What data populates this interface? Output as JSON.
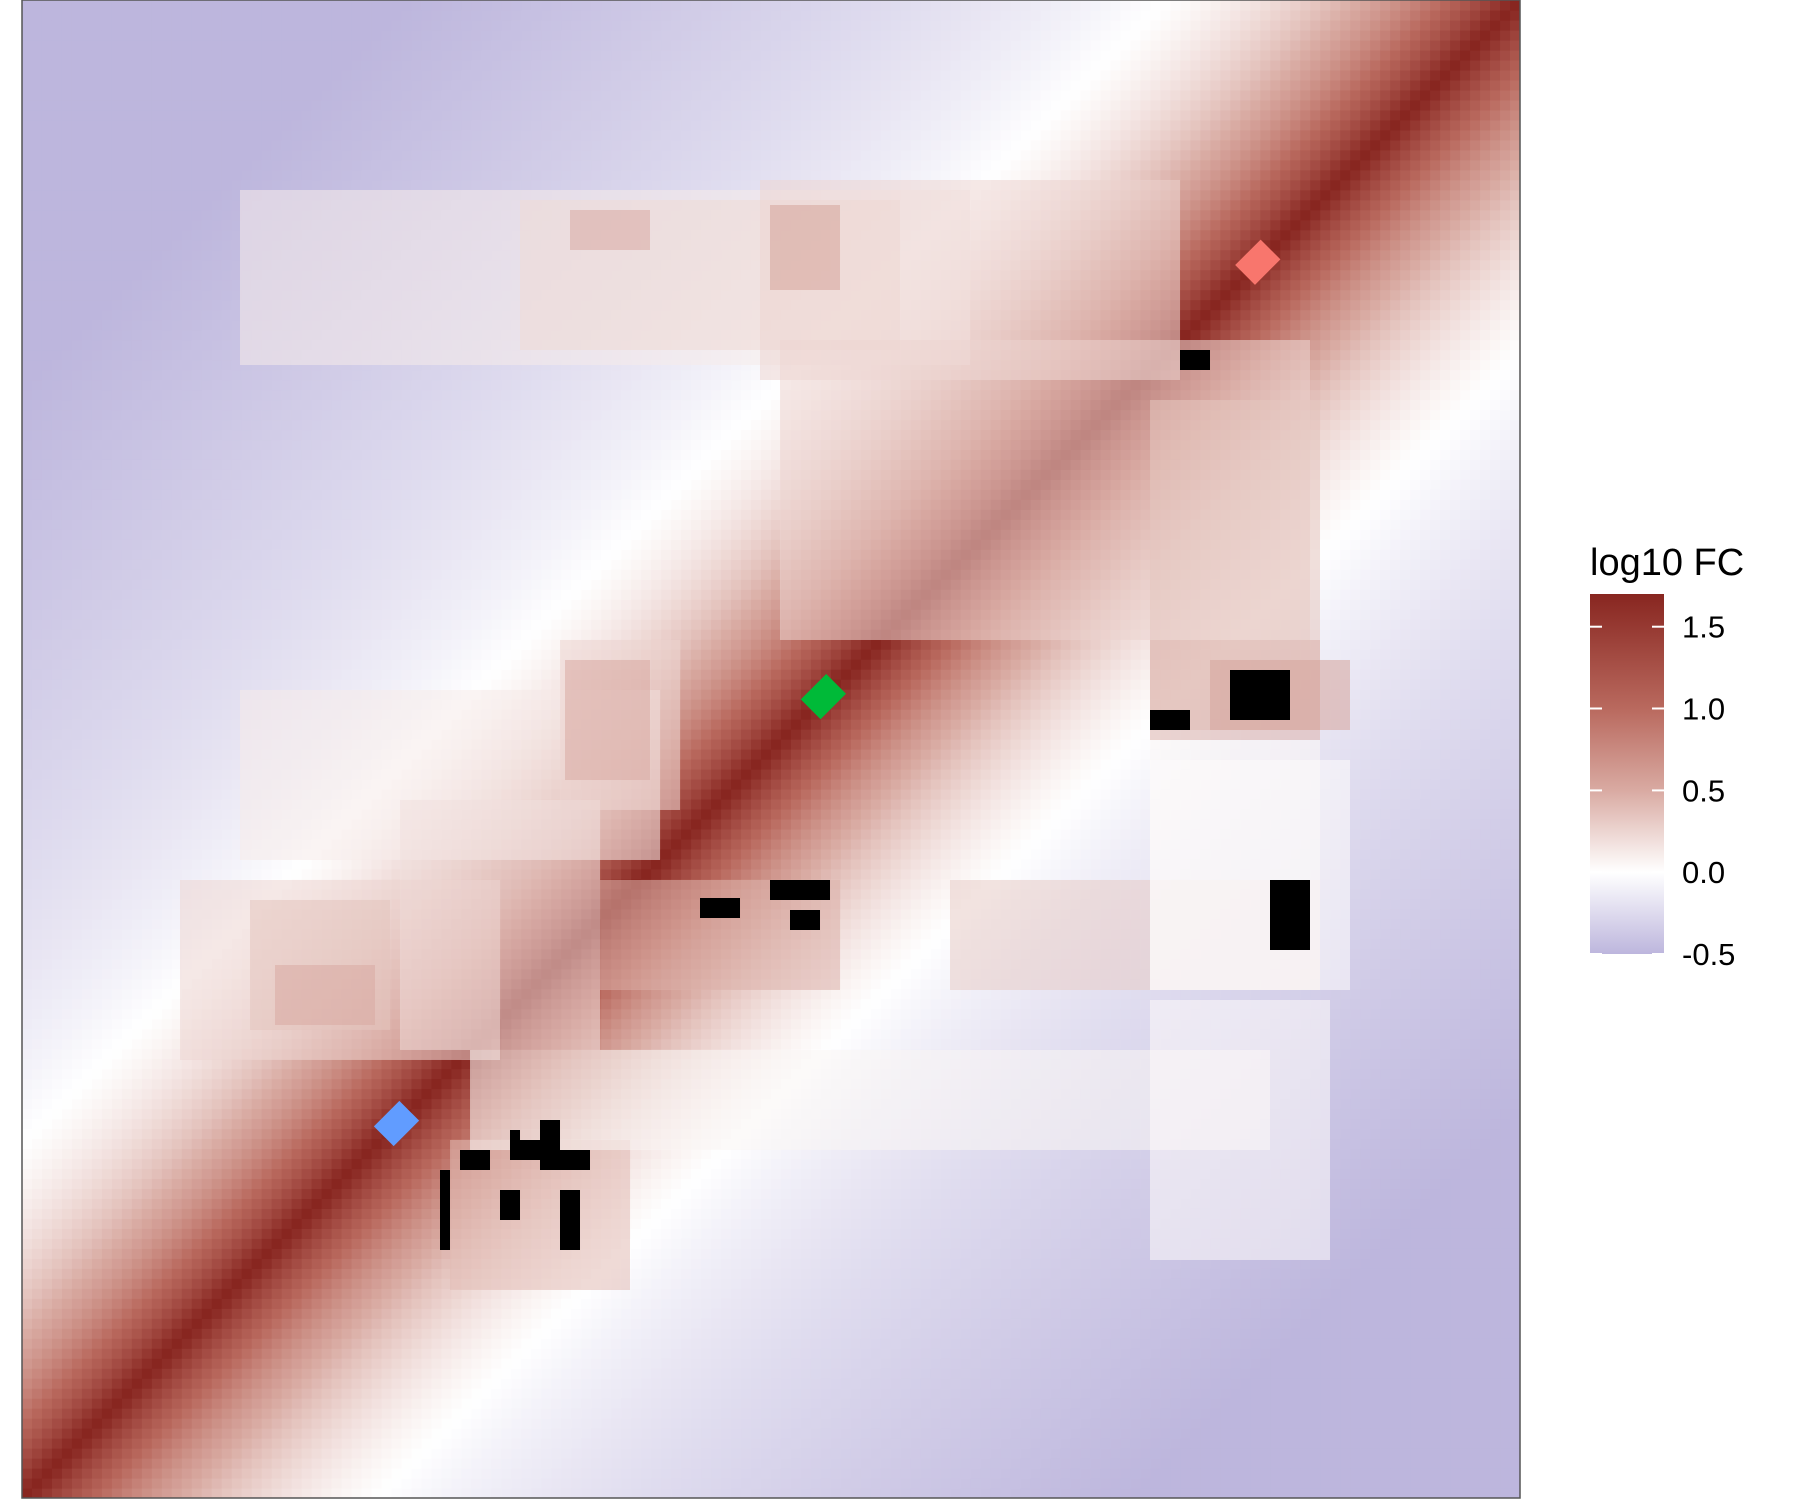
{
  "chart_data": {
    "type": "heatmap",
    "title": "",
    "xlabel": "",
    "ylabel": "",
    "axes_visible": false,
    "matrix": "symmetric contact-map style fold-change heatmap; strong positive diagonal decaying to negative with distance",
    "color_scale": {
      "name": "log10 FC",
      "range": [
        -0.5,
        1.7
      ],
      "ticks": [
        1.5,
        1.0,
        0.5,
        0.0,
        -0.5
      ],
      "tick_labels": [
        "1.5",
        "1.0",
        "0.5",
        "0.0",
        "-0.5"
      ],
      "stops": [
        {
          "value": -0.5,
          "color": "#bdb6dd"
        },
        {
          "value": 0.0,
          "color": "#ffffff"
        },
        {
          "value": 0.5,
          "color": "#d9aaa2"
        },
        {
          "value": 1.0,
          "color": "#b9695e"
        },
        {
          "value": 1.7,
          "color": "#882620"
        }
      ]
    },
    "diagonal_markers": [
      {
        "position": 0.25,
        "color": "#619cff"
      },
      {
        "position": 0.535,
        "color": "#00ba38"
      },
      {
        "position": 0.825,
        "color": "#f8766d"
      }
    ],
    "masked_color": "#000000"
  }
}
